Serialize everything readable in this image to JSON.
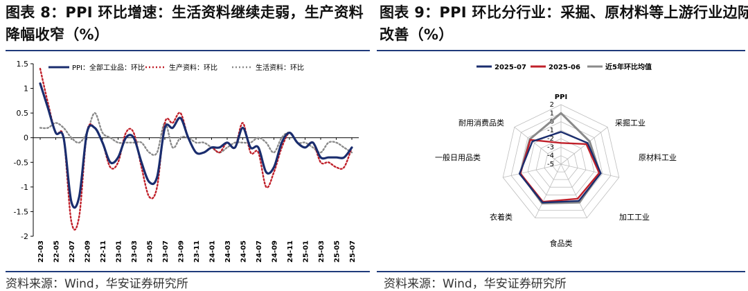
{
  "left": {
    "title_line1": "图表 8：PPI 环比增速：生活资料继续走弱，生产资料",
    "title_line2": "降幅收窄（%）",
    "source": "资料来源：Wind，华安证券研究所"
  },
  "right": {
    "title_line1": "图表 9：PPI 环比分行业：采掘、原材料等上游行业边际",
    "title_line2": "改善（%）",
    "source": "资料来源：Wind，华安证券研究所"
  },
  "chart_data": [
    {
      "type": "line",
      "title": "",
      "ylim": [
        -2,
        1.5
      ],
      "y_ticks": [
        "1.5",
        "1",
        "0.5",
        "0",
        "-0.5",
        "-1",
        "-1.5",
        "-2"
      ],
      "x_tick_labels": [
        "22-03",
        "22-05",
        "22-07",
        "22-09",
        "22-11",
        "23-01",
        "23-03",
        "23-05",
        "23-07",
        "23-09",
        "23-11",
        "24-01",
        "24-03",
        "24-05",
        "24-07",
        "24-09",
        "24-11",
        "25-01",
        "25-03",
        "25-05",
        "25-07"
      ],
      "x": [
        "22-03",
        "22-04",
        "22-05",
        "22-06",
        "22-07",
        "22-08",
        "22-09",
        "22-10",
        "22-11",
        "22-12",
        "23-01",
        "23-02",
        "23-03",
        "23-04",
        "23-05",
        "23-06",
        "23-07",
        "23-08",
        "23-09",
        "23-10",
        "23-11",
        "23-12",
        "24-01",
        "24-02",
        "24-03",
        "24-04",
        "24-05",
        "24-06",
        "24-07",
        "24-08",
        "24-09",
        "24-10",
        "24-11",
        "24-12",
        "25-01",
        "25-02",
        "25-03",
        "25-04",
        "25-05",
        "25-06",
        "25-07"
      ],
      "legend_position": "top",
      "grid": false,
      "series": [
        {
          "name": "PPI：全部工业品：环比",
          "color": "#1a2d6e",
          "style": "solid",
          "values": [
            1.1,
            0.6,
            0.1,
            0.0,
            -1.3,
            -1.2,
            0.1,
            0.2,
            -0.1,
            -0.5,
            -0.4,
            0.0,
            0.0,
            -0.5,
            -0.9,
            -0.8,
            0.2,
            0.2,
            0.4,
            0.0,
            -0.3,
            -0.3,
            -0.2,
            -0.2,
            -0.1,
            -0.2,
            0.2,
            -0.2,
            -0.2,
            -0.7,
            -0.6,
            -0.1,
            0.1,
            -0.1,
            -0.2,
            -0.1,
            -0.4,
            -0.4,
            -0.4,
            -0.4,
            -0.2
          ]
        },
        {
          "name": "生产资料：环比",
          "color": "#c0202a",
          "style": "dotted",
          "values": [
            1.4,
            0.7,
            0.1,
            0.0,
            -1.7,
            -1.6,
            0.1,
            0.2,
            -0.1,
            -0.6,
            -0.5,
            0.1,
            0.1,
            -0.6,
            -1.2,
            -1.0,
            0.3,
            0.3,
            0.5,
            0.0,
            -0.3,
            -0.3,
            -0.2,
            -0.3,
            -0.1,
            -0.2,
            0.3,
            -0.3,
            -0.3,
            -1.0,
            -0.7,
            -0.2,
            0.1,
            -0.1,
            -0.2,
            -0.1,
            -0.5,
            -0.5,
            -0.6,
            -0.6,
            -0.2
          ]
        },
        {
          "name": "生活资料：环比",
          "color": "#8a8a8a",
          "style": "dotted",
          "values": [
            0.2,
            0.2,
            0.3,
            0.2,
            0.0,
            -0.1,
            0.1,
            0.5,
            0.1,
            0.0,
            -0.1,
            -0.1,
            -0.1,
            -0.1,
            -0.3,
            -0.3,
            0.3,
            -0.2,
            0.0,
            0.0,
            -0.1,
            -0.1,
            -0.2,
            -0.3,
            -0.2,
            -0.1,
            -0.1,
            -0.1,
            0.0,
            -0.1,
            -0.3,
            0.0,
            0.1,
            -0.1,
            -0.1,
            -0.2,
            -0.3,
            -0.1,
            -0.1,
            -0.2,
            -0.3
          ]
        }
      ]
    },
    {
      "type": "radar",
      "title": "PPI",
      "rlim": [
        -5,
        2
      ],
      "r_ticks": [
        "2",
        "1",
        "0",
        "-1",
        "-2",
        "-3",
        "-4",
        "-5"
      ],
      "categories": [
        "采掘工业",
        "原材料工业",
        "加工工业",
        "食品类",
        "衣着类",
        "一般日用品类",
        "耐用消费品类"
      ],
      "legend_position": "top",
      "series": [
        {
          "name": "2025-07",
          "color": "#1a2d6e",
          "values": [
            -1.2,
            -1.0,
            -0.2,
            -0.2,
            0.0,
            0.0,
            -0.7
          ]
        },
        {
          "name": "2025-06",
          "color": "#c0202a",
          "values": [
            -2.5,
            -1.2,
            -0.4,
            -0.5,
            -0.1,
            -0.1,
            -0.4
          ]
        },
        {
          "name": "近5年环比均值",
          "color": "#8a8a8a",
          "values": [
            1.0,
            -0.7,
            -0.3,
            0.0,
            0.1,
            -0.1,
            -0.3
          ]
        }
      ]
    }
  ]
}
